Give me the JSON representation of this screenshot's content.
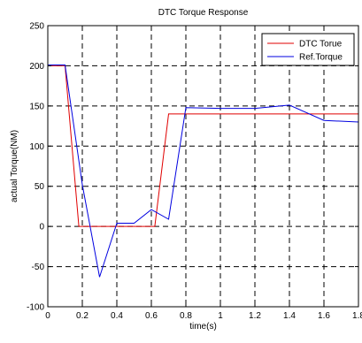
{
  "chart_data": {
    "type": "line",
    "title": "DTC Torque Response",
    "xlabel": "time(s)",
    "ylabel": "actual Torque(NM)",
    "xlim": [
      0,
      1.8
    ],
    "ylim": [
      -100,
      250
    ],
    "xticks": [
      0,
      0.2,
      0.4,
      0.6,
      0.8,
      1,
      1.2,
      1.4,
      1.6,
      1.8
    ],
    "yticks": [
      -100,
      -50,
      0,
      50,
      100,
      150,
      200,
      250
    ],
    "xtick_labels": [
      "0",
      "0.2",
      "0.4",
      "0.6",
      "0.8",
      "1",
      "1.2",
      "1.4",
      "1.6",
      "1.8"
    ],
    "ytick_labels": [
      "-100",
      "-50",
      "0",
      "50",
      "100",
      "150",
      "200",
      "250"
    ],
    "grid": true,
    "legend_position": "top-right",
    "series": [
      {
        "name": "DTC Torue",
        "color": "#e00000",
        "x": [
          0,
          0.1,
          0.18,
          0.62,
          0.7,
          1.8
        ],
        "y": [
          200,
          200,
          0,
          0,
          140,
          140
        ]
      },
      {
        "name": "Ref.Torque",
        "color": "#0000e0",
        "x": [
          0,
          0.1,
          0.2,
          0.3,
          0.4,
          0.5,
          0.6,
          0.7,
          0.8,
          1.0,
          1.2,
          1.4,
          1.6,
          1.8
        ],
        "y": [
          201,
          201,
          52,
          -63,
          4,
          4,
          21,
          9,
          148,
          147,
          147,
          151,
          132,
          130
        ]
      }
    ]
  }
}
